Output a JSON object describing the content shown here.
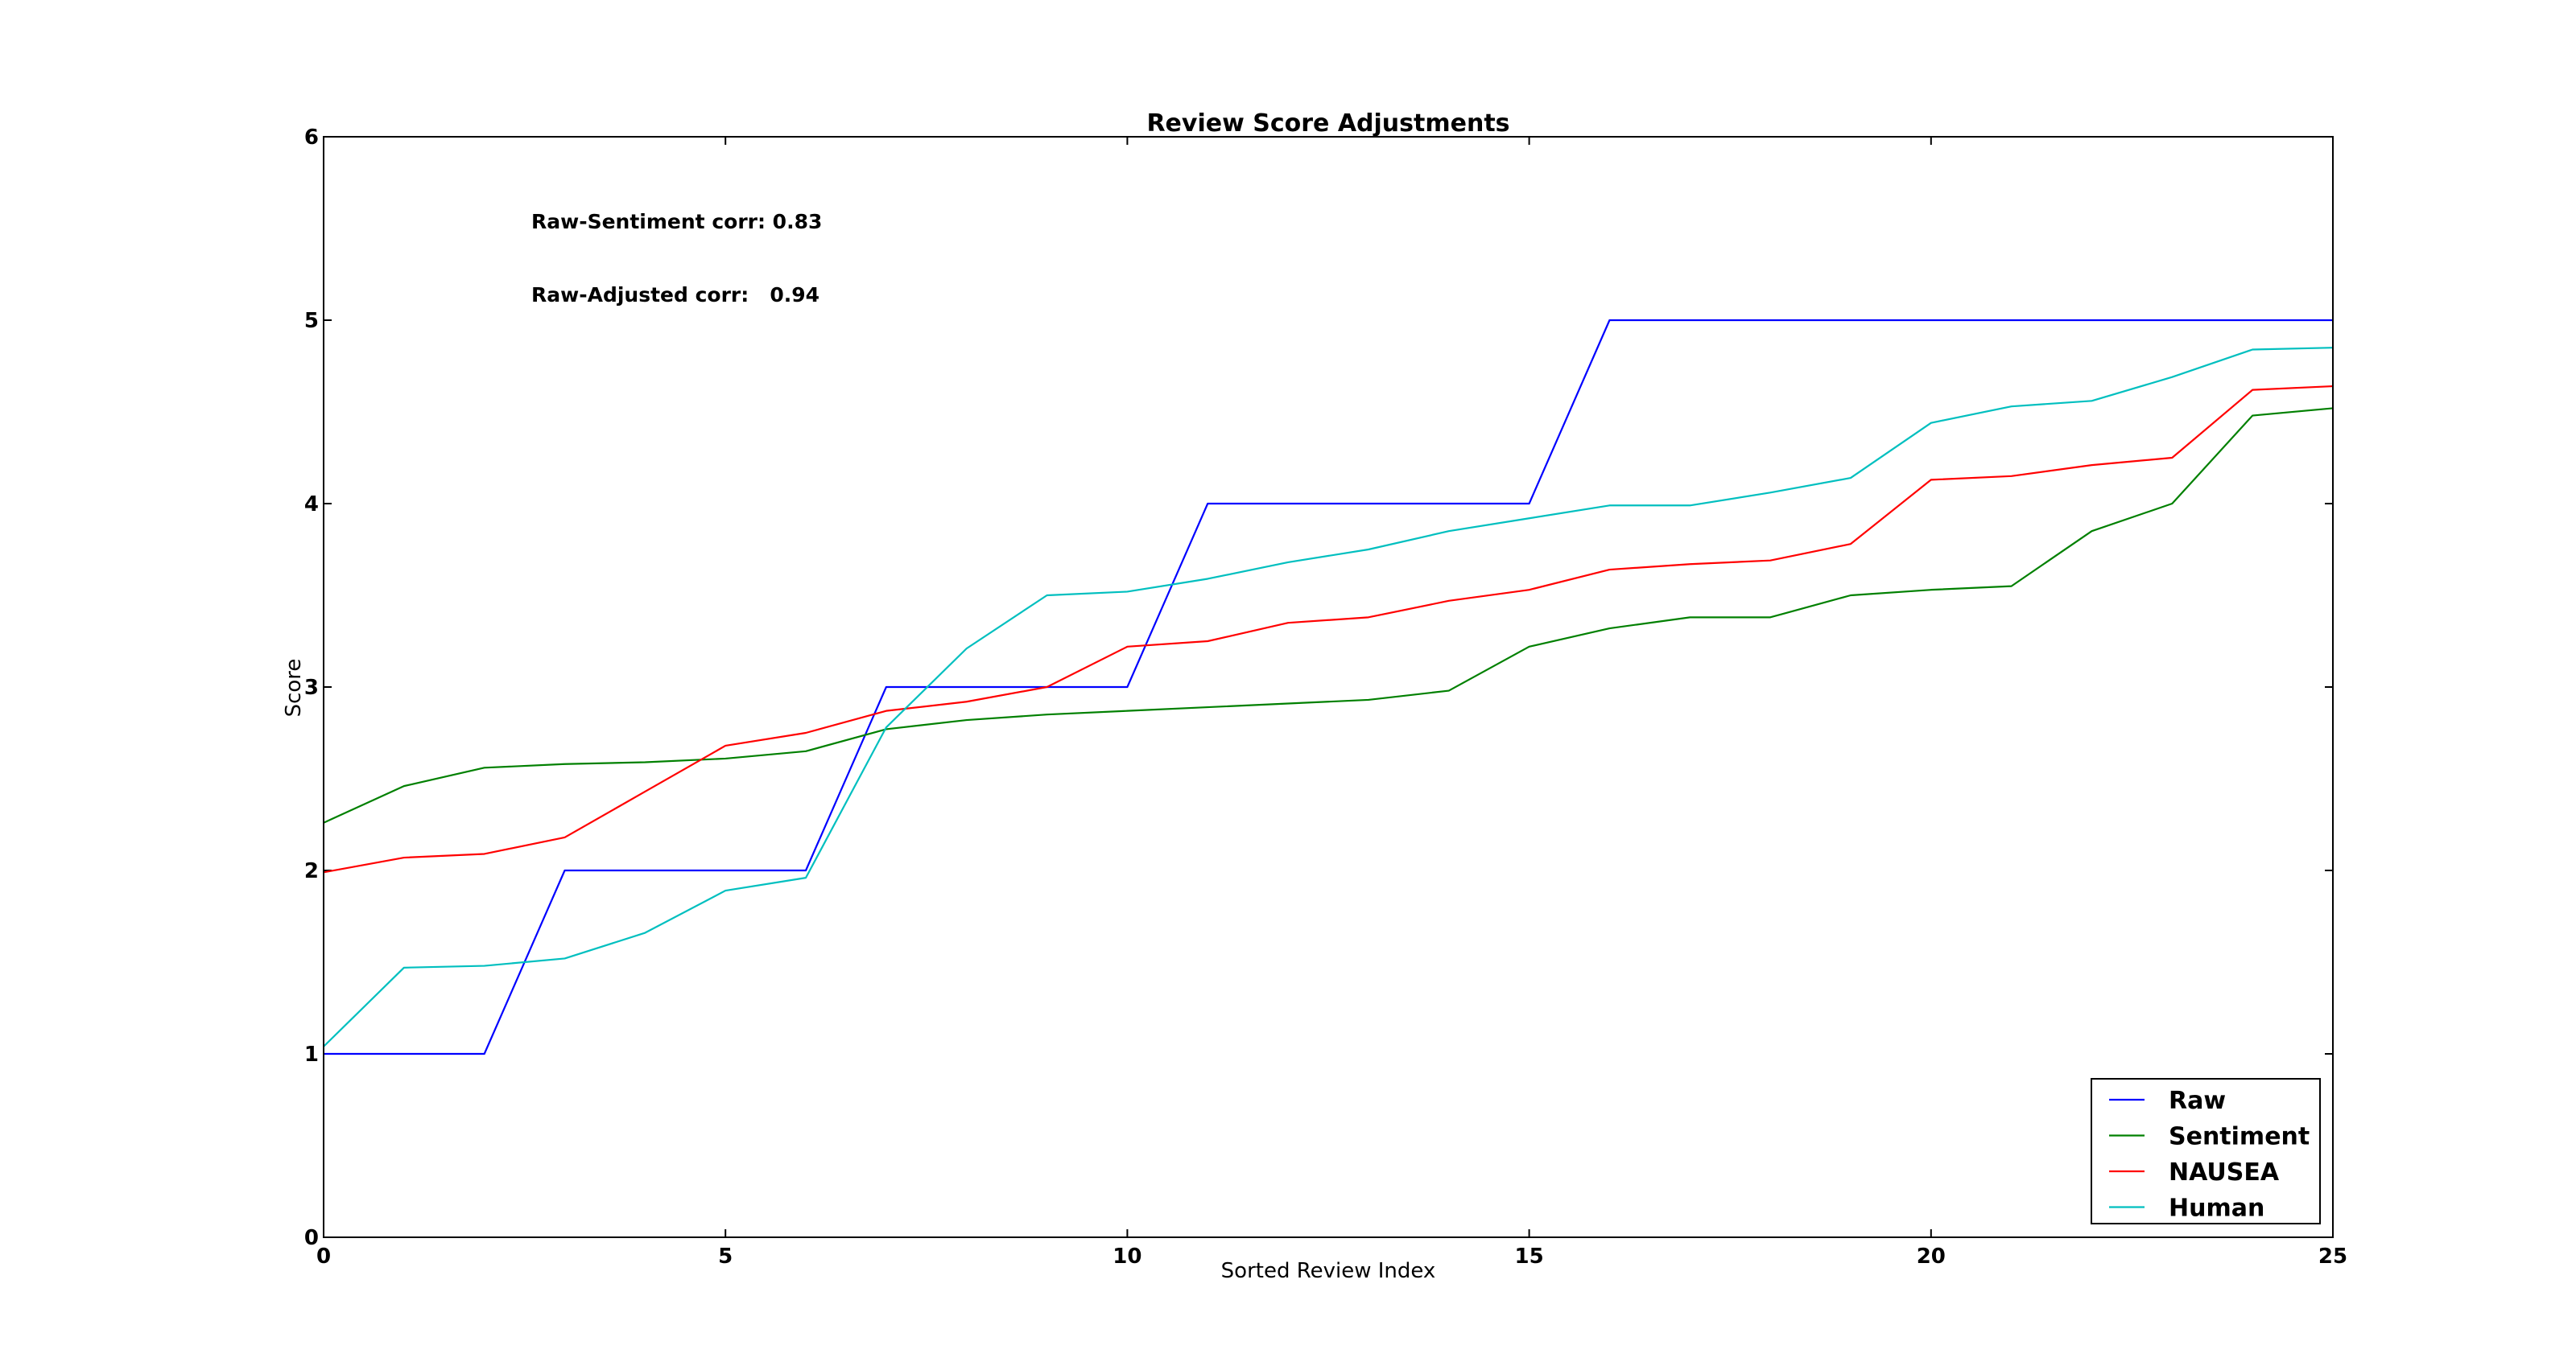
{
  "chart_data": {
    "type": "line",
    "title": "Review Score Adjustments",
    "xlabel": "Sorted Review Index",
    "ylabel": "Score",
    "xlim": [
      0,
      25
    ],
    "ylim": [
      0,
      6
    ],
    "xticks": [
      0,
      5,
      10,
      15,
      20,
      25
    ],
    "yticks": [
      0,
      1,
      2,
      3,
      4,
      5,
      6
    ],
    "grid": false,
    "legend_position": "lower-right",
    "annotations": [
      "Raw-Sentiment corr: 0.83",
      "Raw-Adjusted corr:   0.94"
    ],
    "x": [
      0,
      1,
      2,
      3,
      4,
      5,
      6,
      7,
      8,
      9,
      10,
      11,
      12,
      13,
      14,
      15,
      16,
      17,
      18,
      19,
      20,
      21,
      22,
      23,
      24,
      25
    ],
    "series": [
      {
        "name": "Raw",
        "color": "#0000ff",
        "values": [
          1,
          1,
          1,
          2,
          2,
          2,
          2,
          3,
          3,
          3,
          3,
          4,
          4,
          4,
          4,
          4,
          5,
          5,
          5,
          5,
          5,
          5,
          5,
          5,
          5,
          5
        ]
      },
      {
        "name": "Sentiment",
        "color": "#008000",
        "values": [
          2.26,
          2.46,
          2.56,
          2.58,
          2.59,
          2.61,
          2.65,
          2.77,
          2.82,
          2.85,
          2.87,
          2.89,
          2.91,
          2.93,
          2.98,
          3.22,
          3.32,
          3.38,
          3.38,
          3.5,
          3.53,
          3.55,
          3.85,
          4.0,
          4.48,
          4.52
        ]
      },
      {
        "name": "NAUSEA",
        "color": "#ff0000",
        "values": [
          1.99,
          2.07,
          2.09,
          2.18,
          2.43,
          2.68,
          2.75,
          2.87,
          2.92,
          3.0,
          3.22,
          3.25,
          3.35,
          3.38,
          3.47,
          3.53,
          3.64,
          3.67,
          3.69,
          3.78,
          4.13,
          4.15,
          4.21,
          4.25,
          4.62,
          4.64
        ]
      },
      {
        "name": "Human",
        "color": "#00bfbf",
        "values": [
          1.04,
          1.47,
          1.48,
          1.52,
          1.66,
          1.89,
          1.96,
          2.78,
          3.21,
          3.5,
          3.52,
          3.59,
          3.68,
          3.75,
          3.85,
          3.92,
          3.99,
          3.99,
          4.06,
          4.14,
          4.44,
          4.53,
          4.56,
          4.69,
          4.84,
          4.85
        ]
      }
    ]
  }
}
